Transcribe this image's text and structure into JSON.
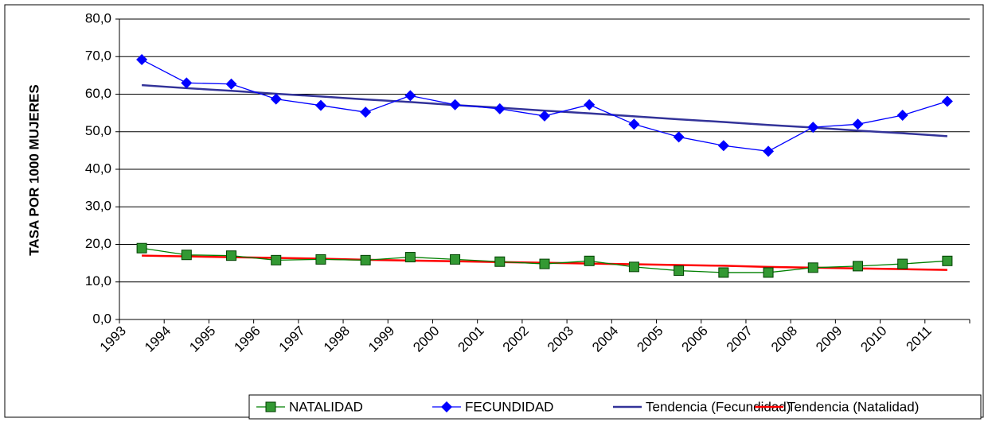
{
  "chart_data": {
    "type": "line",
    "y_label": "TASA POR 1000 MUJERES",
    "categories": [
      "1993",
      "1994",
      "1995",
      "1996",
      "1997",
      "1998",
      "1999",
      "2000",
      "2001",
      "2002",
      "2003",
      "2004",
      "2005",
      "2006",
      "2007",
      "2008",
      "2009",
      "2010",
      "2011"
    ],
    "series": [
      {
        "name": "NATALIDAD",
        "color": "#008000",
        "marker": "square",
        "marker_color": "#339933",
        "values": [
          19.0,
          17.2,
          17.0,
          15.8,
          16.0,
          15.8,
          16.6,
          16.0,
          15.4,
          14.8,
          15.6,
          14.0,
          13.0,
          12.5,
          12.5,
          13.8,
          14.2,
          14.8,
          15.6
        ]
      },
      {
        "name": "FECUNDIDAD",
        "color": "#0000ff",
        "marker": "diamond",
        "marker_color": "#0000ff",
        "values": [
          69.2,
          63.0,
          62.7,
          58.7,
          57.0,
          55.2,
          59.6,
          57.2,
          56.1,
          54.2,
          57.2,
          52.0,
          48.6,
          46.3,
          44.8,
          51.2,
          52.0,
          54.4,
          58.1
        ]
      },
      {
        "name": "Tendencia (Fecundidad)",
        "color": "#333399",
        "marker": "none",
        "values": [
          62.4,
          61.6,
          60.9,
          60.1,
          59.4,
          58.6,
          57.9,
          57.1,
          56.4,
          55.6,
          54.9,
          54.1,
          53.3,
          52.6,
          51.8,
          51.1,
          50.3,
          49.6,
          48.8
        ]
      },
      {
        "name": "Tendencia (Natalidad)",
        "color": "#ff0000",
        "marker": "none",
        "values": [
          17.0,
          16.8,
          16.6,
          16.4,
          16.2,
          15.9,
          15.7,
          15.5,
          15.3,
          15.1,
          14.9,
          14.7,
          14.5,
          14.3,
          14.0,
          13.8,
          13.6,
          13.4,
          13.2
        ]
      }
    ],
    "ylim": [
      0,
      80
    ],
    "yticks": [
      {
        "value": 0,
        "label": "0,0"
      },
      {
        "value": 10,
        "label": "10,0"
      },
      {
        "value": 20,
        "label": "20,0"
      },
      {
        "value": 30,
        "label": "30,0"
      },
      {
        "value": 40,
        "label": "40,0"
      },
      {
        "value": 50,
        "label": "50,0"
      },
      {
        "value": 60,
        "label": "60,0"
      },
      {
        "value": 70,
        "label": "70,0"
      },
      {
        "value": 80,
        "label": "80,0"
      }
    ],
    "grid": true,
    "legend": "bottom"
  }
}
